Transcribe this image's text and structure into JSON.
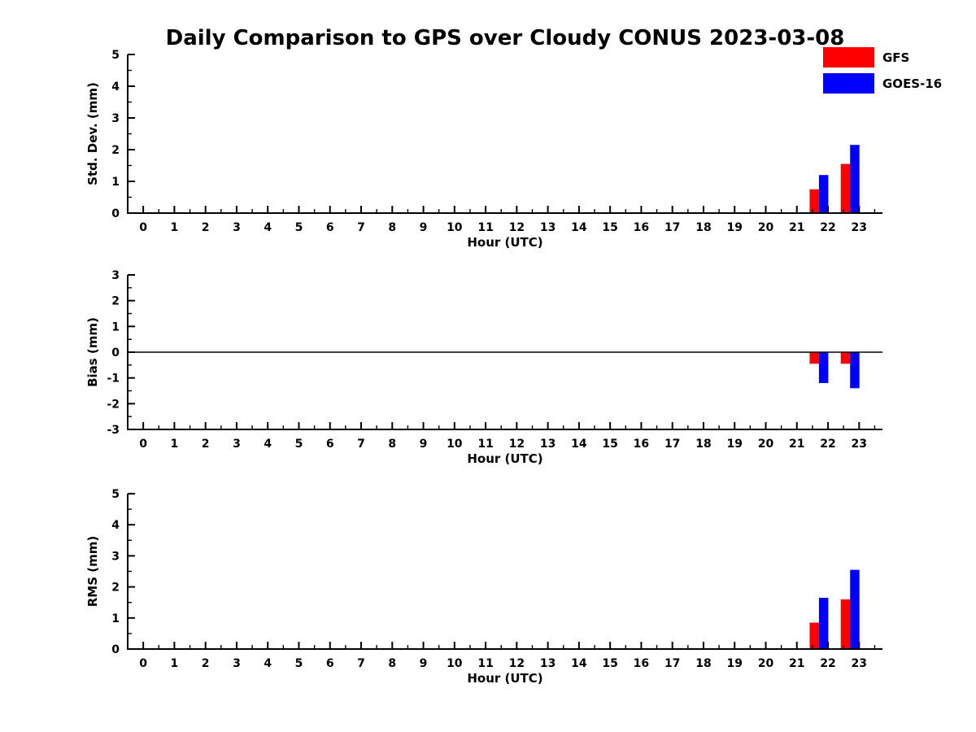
{
  "title": "Daily Comparison to GPS over Cloudy CONUS 2023-03-08",
  "legend": {
    "items": [
      {
        "label": "GFS",
        "color": "#ff0000"
      },
      {
        "label": "GOES-16",
        "color": "#0000ff"
      }
    ]
  },
  "chart_data": [
    {
      "type": "bar",
      "ylabel": "Std. Dev. (mm)",
      "xlabel": "Hour (UTC)",
      "xlim": [
        -0.5,
        23.75
      ],
      "ylim": [
        0,
        5
      ],
      "yticks": [
        0,
        1,
        2,
        3,
        4,
        5
      ],
      "xticks": [
        0,
        1,
        2,
        3,
        4,
        5,
        6,
        7,
        8,
        9,
        10,
        11,
        12,
        13,
        14,
        15,
        16,
        17,
        18,
        19,
        20,
        21,
        22,
        23
      ],
      "categories": [
        22,
        23
      ],
      "series": [
        {
          "name": "GFS",
          "color": "#ff0000",
          "values": [
            0.75,
            1.55
          ]
        },
        {
          "name": "GOES-16",
          "color": "#0000ff",
          "values": [
            1.2,
            2.15
          ]
        }
      ],
      "zero_line": false,
      "grid": false
    },
    {
      "type": "bar",
      "ylabel": "Bias (mm)",
      "xlabel": "Hour (UTC)",
      "xlim": [
        -0.5,
        23.75
      ],
      "ylim": [
        -3,
        3
      ],
      "yticks": [
        -3,
        -2,
        -1,
        0,
        1,
        2,
        3
      ],
      "xticks": [
        0,
        1,
        2,
        3,
        4,
        5,
        6,
        7,
        8,
        9,
        10,
        11,
        12,
        13,
        14,
        15,
        16,
        17,
        18,
        19,
        20,
        21,
        22,
        23
      ],
      "categories": [
        22,
        23
      ],
      "series": [
        {
          "name": "GFS",
          "color": "#ff0000",
          "values": [
            -0.45,
            -0.45
          ]
        },
        {
          "name": "GOES-16",
          "color": "#0000ff",
          "values": [
            -1.2,
            -1.4
          ]
        }
      ],
      "zero_line": true,
      "grid": false
    },
    {
      "type": "bar",
      "ylabel": "RMS (mm)",
      "xlabel": "Hour (UTC)",
      "xlim": [
        -0.5,
        23.75
      ],
      "ylim": [
        0,
        5
      ],
      "yticks": [
        0,
        1,
        2,
        3,
        4,
        5
      ],
      "xticks": [
        0,
        1,
        2,
        3,
        4,
        5,
        6,
        7,
        8,
        9,
        10,
        11,
        12,
        13,
        14,
        15,
        16,
        17,
        18,
        19,
        20,
        21,
        22,
        23
      ],
      "categories": [
        22,
        23
      ],
      "series": [
        {
          "name": "GFS",
          "color": "#ff0000",
          "values": [
            0.85,
            1.6
          ]
        },
        {
          "name": "GOES-16",
          "color": "#0000ff",
          "values": [
            1.65,
            2.55
          ]
        }
      ],
      "zero_line": false,
      "grid": false
    }
  ]
}
